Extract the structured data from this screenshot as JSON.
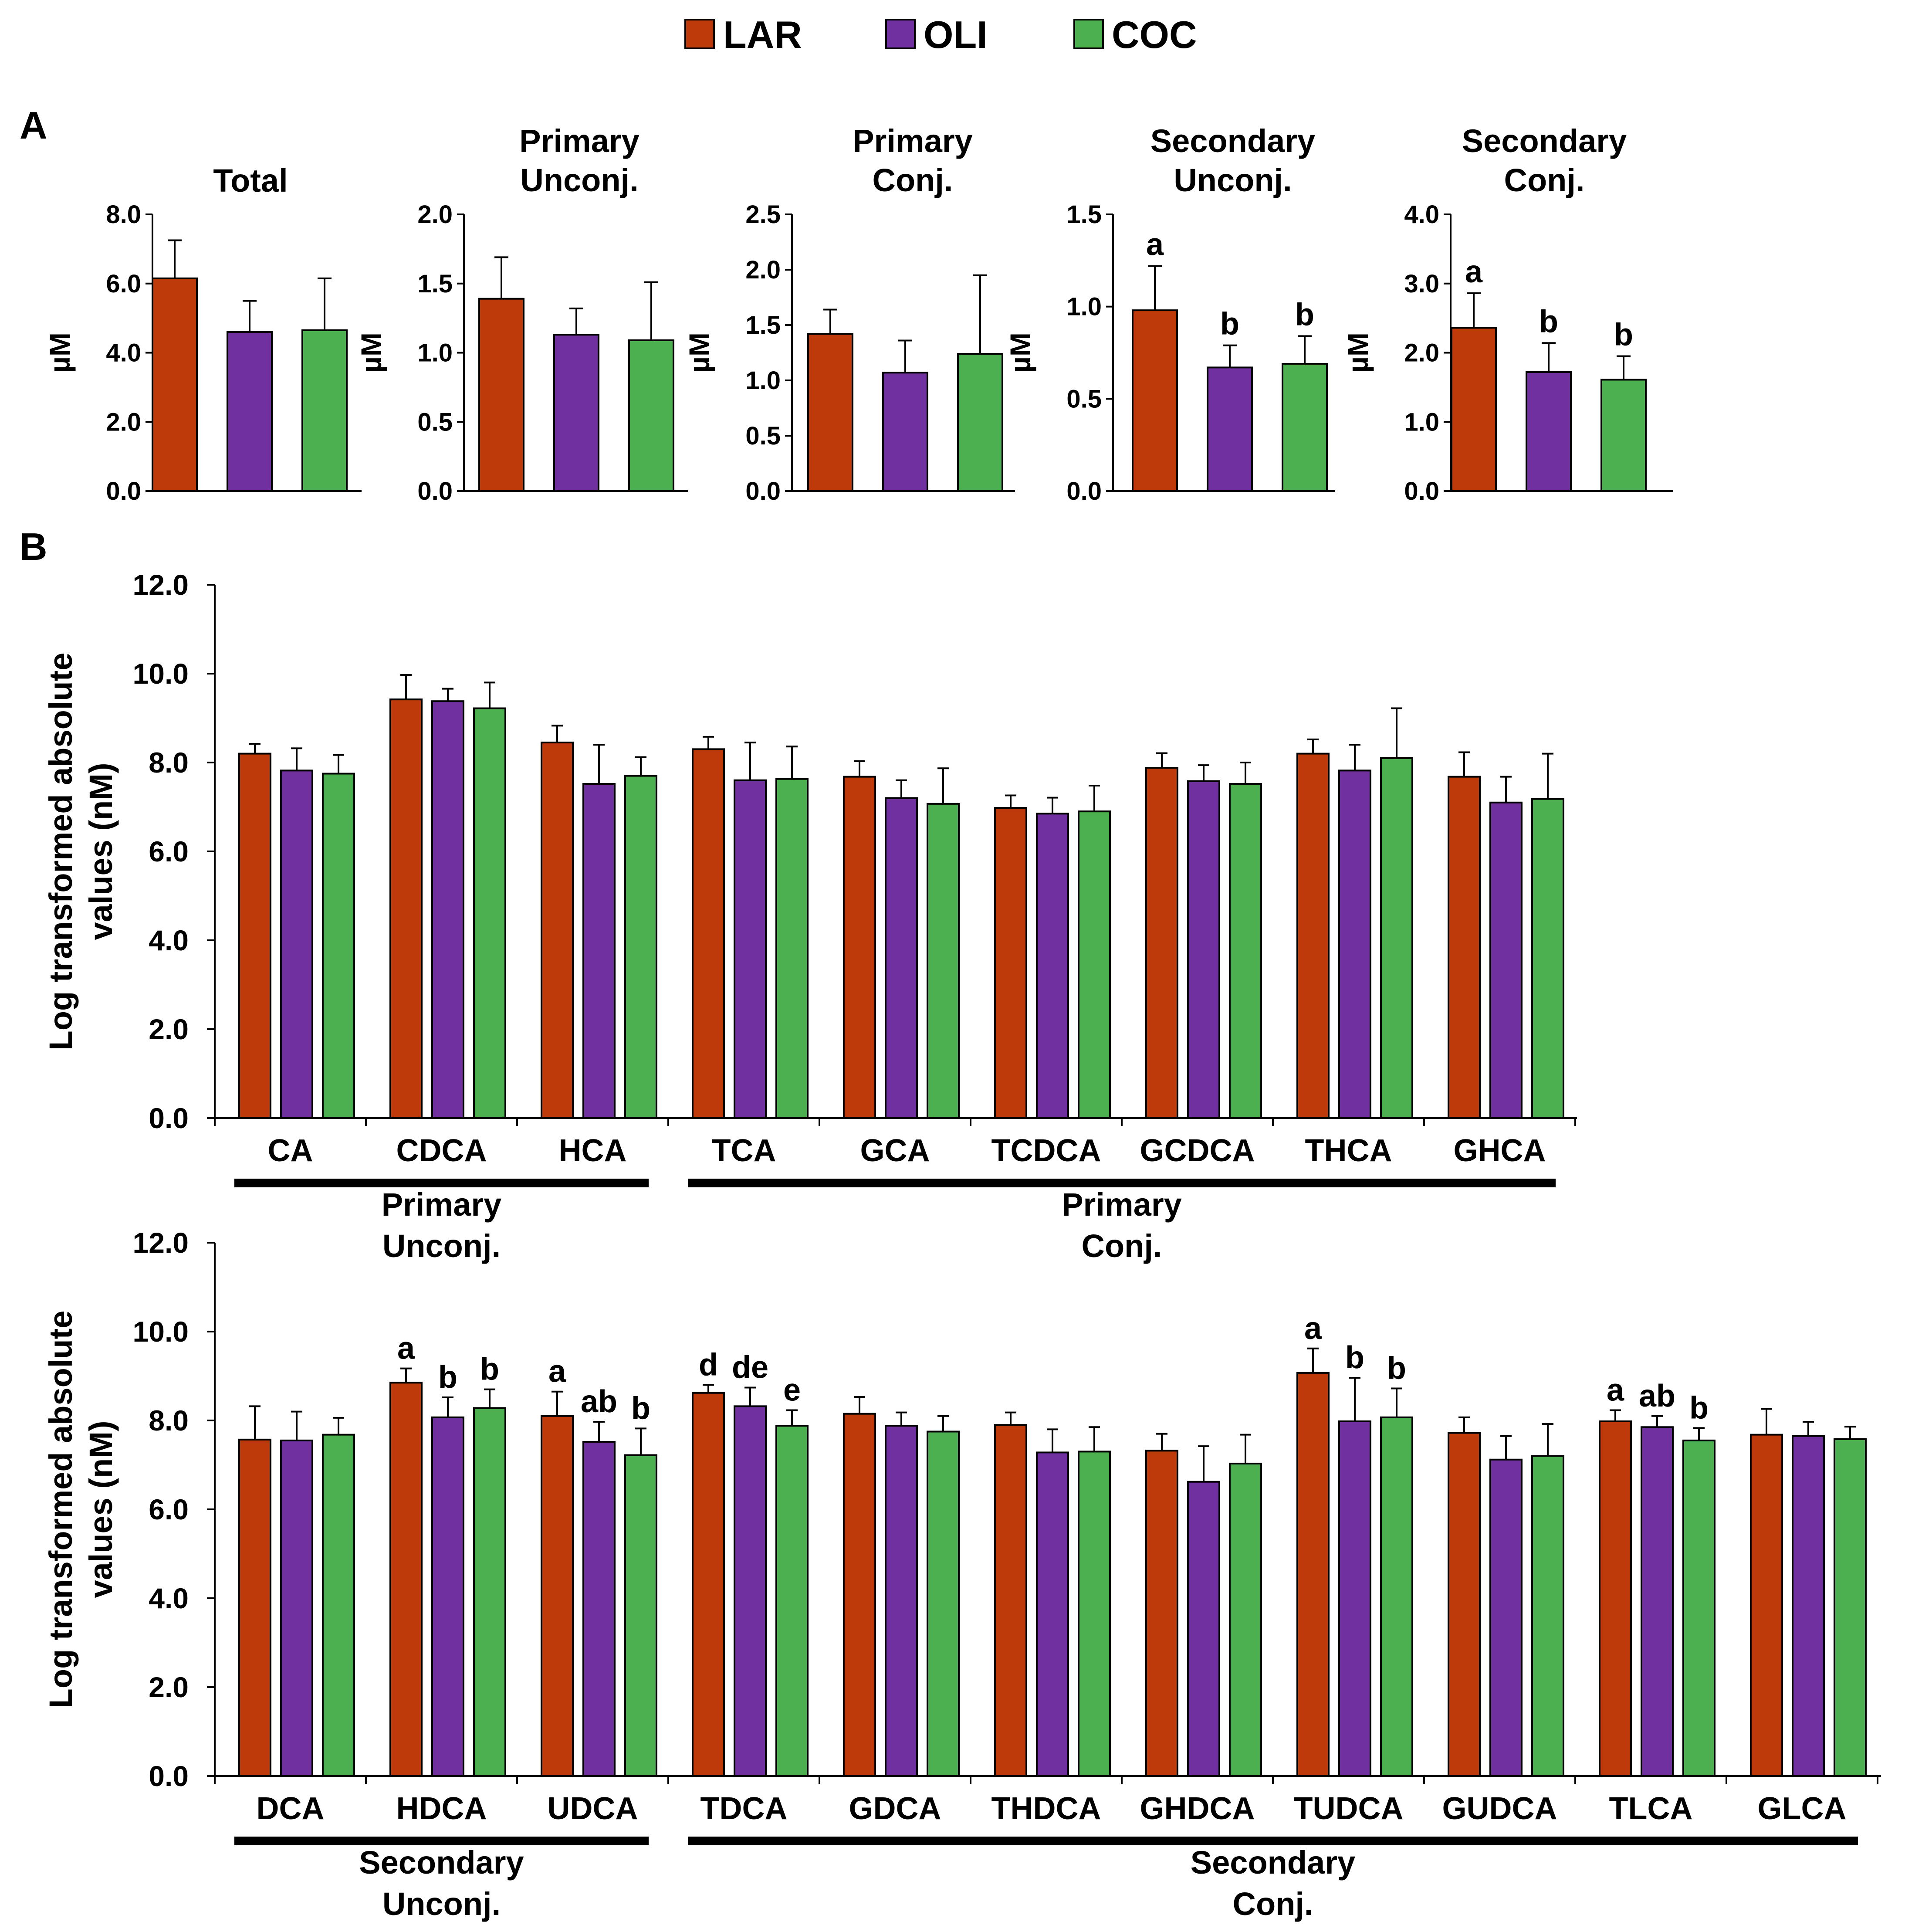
{
  "colors": {
    "LAR": "#bf3a0a",
    "OLI": "#7030a0",
    "COC": "#4caf50"
  },
  "legend": {
    "items": [
      {
        "label": "LAR",
        "key": "LAR"
      },
      {
        "label": "OLI",
        "key": "OLI"
      },
      {
        "label": "COC",
        "key": "COC"
      }
    ]
  },
  "panel_a": {
    "letter": "A"
  },
  "panel_b": {
    "letter": "B"
  },
  "chart_data": [
    {
      "type": "bar",
      "panel": "A",
      "title": [
        "Total"
      ],
      "ylabel": "µM",
      "ylim": [
        0,
        8
      ],
      "yticks": [
        "0.0",
        "2.0",
        "4.0",
        "6.0",
        "8.0"
      ],
      "groups": [
        "LAR",
        "OLI",
        "COC"
      ],
      "values": [
        6.15,
        4.6,
        4.65
      ],
      "errors": [
        1.1,
        0.9,
        1.5
      ],
      "sig": [
        "",
        "",
        ""
      ]
    },
    {
      "type": "bar",
      "panel": "A",
      "title": [
        "Primary",
        "Unconj."
      ],
      "ylabel": "µM",
      "ylim": [
        0,
        2
      ],
      "yticks": [
        "0.0",
        "0.5",
        "1.0",
        "1.5",
        "2.0"
      ],
      "groups": [
        "LAR",
        "OLI",
        "COC"
      ],
      "values": [
        1.39,
        1.13,
        1.09
      ],
      "errors": [
        0.3,
        0.19,
        0.42
      ],
      "sig": [
        "",
        "",
        ""
      ]
    },
    {
      "type": "bar",
      "panel": "A",
      "title": [
        "Primary",
        "Conj."
      ],
      "ylabel": "µM",
      "ylim": [
        0,
        2.5
      ],
      "yticks": [
        "0.0",
        "0.5",
        "1.0",
        "1.5",
        "2.0",
        "2.5"
      ],
      "groups": [
        "LAR",
        "OLI",
        "COC"
      ],
      "values": [
        1.42,
        1.07,
        1.24
      ],
      "errors": [
        0.22,
        0.29,
        0.71
      ],
      "sig": [
        "",
        "",
        ""
      ]
    },
    {
      "type": "bar",
      "panel": "A",
      "title": [
        "Secondary",
        "Unconj."
      ],
      "ylabel": "µM",
      "ylim": [
        0,
        1.5
      ],
      "yticks": [
        "0.0",
        "0.5",
        "1.0",
        "1.5"
      ],
      "groups": [
        "LAR",
        "OLI",
        "COC"
      ],
      "values": [
        0.98,
        0.67,
        0.69
      ],
      "errors": [
        0.24,
        0.12,
        0.15
      ],
      "sig": [
        "a",
        "b",
        "b"
      ]
    },
    {
      "type": "bar",
      "panel": "A",
      "title": [
        "Secondary",
        "Conj."
      ],
      "ylabel": "µM",
      "ylim": [
        0,
        4
      ],
      "yticks": [
        "0.0",
        "1.0",
        "2.0",
        "3.0",
        "4.0"
      ],
      "groups": [
        "LAR",
        "OLI",
        "COC"
      ],
      "values": [
        2.36,
        1.72,
        1.61
      ],
      "errors": [
        0.5,
        0.42,
        0.34
      ],
      "sig": [
        "a",
        "b",
        "b"
      ]
    },
    {
      "type": "bar",
      "panel": "B-top",
      "ylabel": [
        "Log transformed absolute",
        "values (nM)"
      ],
      "ylim": [
        0,
        12
      ],
      "yticks": [
        "0.0",
        "2.0",
        "4.0",
        "6.0",
        "8.0",
        "10.0",
        "12.0"
      ],
      "categories": [
        "CA",
        "CDCA",
        "HCA",
        "TCA",
        "GCA",
        "TCDCA",
        "GCDCA",
        "THCA",
        "GHCA"
      ],
      "series": [
        {
          "name": "LAR",
          "values": [
            8.2,
            9.42,
            8.45,
            8.3,
            7.68,
            6.98,
            7.88,
            8.2,
            7.68
          ],
          "errors": [
            0.22,
            0.55,
            0.38,
            0.28,
            0.35,
            0.28,
            0.33,
            0.32,
            0.55
          ]
        },
        {
          "name": "OLI",
          "values": [
            7.82,
            9.38,
            7.52,
            7.6,
            7.2,
            6.85,
            7.58,
            7.82,
            7.1
          ],
          "errors": [
            0.5,
            0.28,
            0.88,
            0.85,
            0.4,
            0.36,
            0.36,
            0.58,
            0.58
          ]
        },
        {
          "name": "COC",
          "values": [
            7.75,
            9.22,
            7.7,
            7.63,
            7.07,
            6.9,
            7.52,
            8.1,
            7.18
          ],
          "errors": [
            0.42,
            0.58,
            0.42,
            0.73,
            0.8,
            0.58,
            0.48,
            1.12,
            1.02
          ]
        }
      ],
      "sig": [],
      "group_labels": [
        {
          "lines": [
            "Primary",
            "Unconj."
          ],
          "from": 0,
          "to": 2
        },
        {
          "lines": [
            "Primary",
            "Conj."
          ],
          "from": 3,
          "to": 8
        }
      ]
    },
    {
      "type": "bar",
      "panel": "B-bottom",
      "ylabel": [
        "Log transformed absolute",
        "values (nM)"
      ],
      "ylim": [
        0,
        12
      ],
      "yticks": [
        "0.0",
        "2.0",
        "4.0",
        "6.0",
        "8.0",
        "10.0",
        "12.0"
      ],
      "categories": [
        "DCA",
        "HDCA",
        "UDCA",
        "TDCA",
        "GDCA",
        "THDCA",
        "GHDCA",
        "TUDCA",
        "GUDCA",
        "TLCA",
        "GLCA"
      ],
      "series": [
        {
          "name": "LAR",
          "values": [
            7.57,
            8.85,
            8.1,
            8.62,
            8.15,
            7.9,
            7.32,
            9.07,
            7.72,
            7.98,
            7.68
          ],
          "errors": [
            0.75,
            0.32,
            0.55,
            0.18,
            0.38,
            0.28,
            0.38,
            0.55,
            0.35,
            0.25,
            0.58
          ]
        },
        {
          "name": "OLI",
          "values": [
            7.55,
            8.07,
            7.52,
            8.32,
            7.88,
            7.28,
            6.62,
            7.98,
            7.12,
            7.85,
            7.65
          ],
          "errors": [
            0.65,
            0.45,
            0.45,
            0.42,
            0.3,
            0.52,
            0.8,
            0.98,
            0.53,
            0.25,
            0.32
          ]
        },
        {
          "name": "COC",
          "values": [
            7.68,
            8.28,
            7.22,
            7.88,
            7.75,
            7.3,
            7.03,
            8.07,
            7.2,
            7.55,
            7.58
          ],
          "errors": [
            0.38,
            0.42,
            0.6,
            0.35,
            0.35,
            0.55,
            0.65,
            0.65,
            0.72,
            0.28,
            0.28
          ]
        }
      ],
      "sig": [
        {
          "cat": 1,
          "series": 0,
          "label": "a"
        },
        {
          "cat": 1,
          "series": 1,
          "label": "b"
        },
        {
          "cat": 1,
          "series": 2,
          "label": "b"
        },
        {
          "cat": 2,
          "series": 0,
          "label": "a"
        },
        {
          "cat": 2,
          "series": 1,
          "label": "ab"
        },
        {
          "cat": 2,
          "series": 2,
          "label": "b"
        },
        {
          "cat": 3,
          "series": 0,
          "label": "d"
        },
        {
          "cat": 3,
          "series": 1,
          "label": "de"
        },
        {
          "cat": 3,
          "series": 2,
          "label": "e"
        },
        {
          "cat": 7,
          "series": 0,
          "label": "a"
        },
        {
          "cat": 7,
          "series": 1,
          "label": "b"
        },
        {
          "cat": 7,
          "series": 2,
          "label": "b"
        },
        {
          "cat": 9,
          "series": 0,
          "label": "a"
        },
        {
          "cat": 9,
          "series": 1,
          "label": "ab"
        },
        {
          "cat": 9,
          "series": 2,
          "label": "b"
        }
      ],
      "group_labels": [
        {
          "lines": [
            "Secondary",
            "Unconj."
          ],
          "from": 0,
          "to": 2
        },
        {
          "lines": [
            "Secondary",
            "Conj."
          ],
          "from": 3,
          "to": 10
        }
      ]
    }
  ]
}
